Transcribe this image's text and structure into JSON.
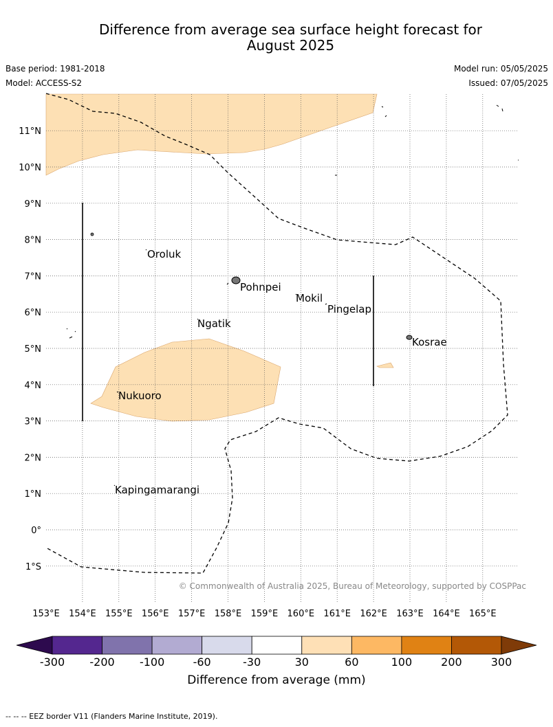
{
  "title_line1": "Difference from average sea surface height forecast for",
  "title_line2": "August 2025",
  "base_period": "Base period: 1981-2018",
  "model": "Model: ACCESS-S2",
  "model_run": "Model run: 05/05/2025",
  "issued": "Issued: 07/05/2025",
  "copyright": "© Commonwealth of Australia 2025, Bureau of Meteorology, supported by COSPPac",
  "footer_note": "-- -- -- EEZ border V11 (Flanders Marine Institute, 2019).",
  "longitude_labels": [
    "153°E",
    "154°E",
    "155°E",
    "156°E",
    "157°E",
    "158°E",
    "159°E",
    "160°E",
    "161°E",
    "162°E",
    "163°E",
    "164°E",
    "165°E"
  ],
  "latitude_labels": [
    "11°N",
    "10°N",
    "9°N",
    "8°N",
    "7°N",
    "6°N",
    "5°N",
    "4°N",
    "3°N",
    "2°N",
    "1°N",
    "0°",
    "1°S"
  ],
  "places": [
    "Oroluk",
    "Pohnpei",
    "Mokil",
    "Pingelap",
    "Ngatik",
    "Kosrae",
    "Nukuoro",
    "Kapingamarangi"
  ],
  "colorbar": {
    "title": "Difference from average (mm)",
    "tick_labels": [
      "-300",
      "-200",
      "-100",
      "-60",
      "-30",
      "30",
      "60",
      "100",
      "200",
      "300"
    ],
    "colors": [
      "#2d0a4e",
      "#54278f",
      "#8073ac",
      "#b2abd2",
      "#d8daeb",
      "#ffffff",
      "#fee0b6",
      "#fdb863",
      "#e08214",
      "#b35806",
      "#7f3b08"
    ]
  },
  "anomaly_color": "#fde0b4",
  "anomaly_fill_level": "30 to 60 mm"
}
